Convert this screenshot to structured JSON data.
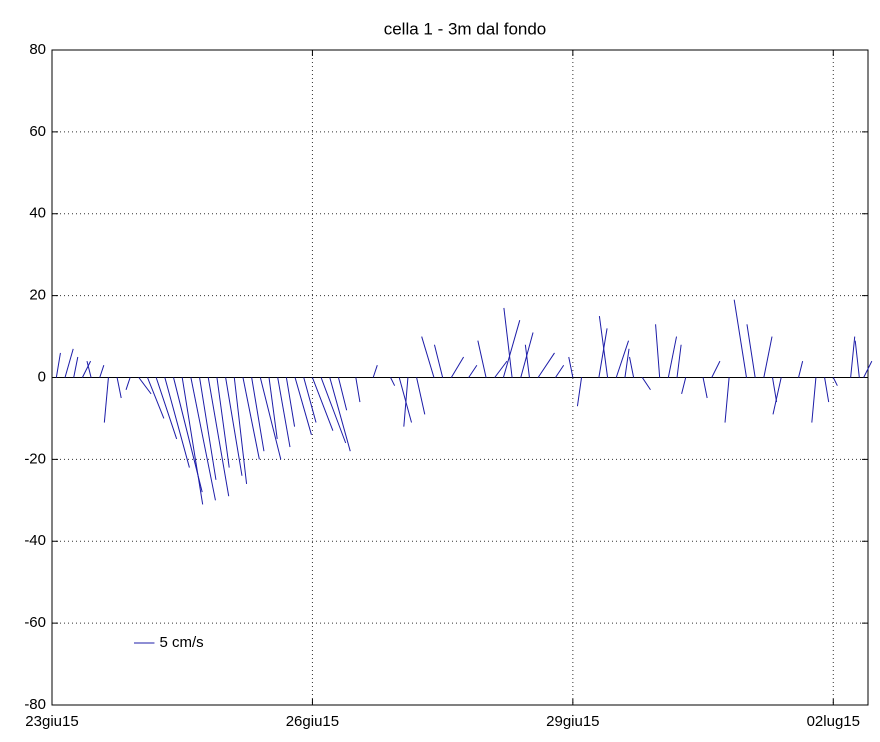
{
  "chart_data": {
    "type": "stick",
    "title": "cella 1 - 3m dal fondo",
    "xlim": [
      0,
      9.4
    ],
    "ylim": [
      -80,
      80
    ],
    "xticks": [
      {
        "value": 0,
        "label": "23giu15"
      },
      {
        "value": 3,
        "label": "26giu15"
      },
      {
        "value": 6,
        "label": "29giu15"
      },
      {
        "value": 9,
        "label": "02lug15"
      }
    ],
    "yticks": [
      -80,
      -60,
      -40,
      -20,
      0,
      20,
      40,
      60,
      80
    ],
    "grid": true,
    "legend": "lower left",
    "series": [
      {
        "name": "5 cm/s",
        "color": "#1c1ca8",
        "legend_length": 5,
        "x": [
          0.05,
          0.15,
          0.25,
          0.35,
          0.45,
          0.55,
          0.65,
          0.75,
          0.9,
          1.0,
          1.1,
          1.2,
          1.3,
          1.4,
          1.5,
          1.6,
          1.7,
          1.8,
          1.9,
          2.0,
          2.1,
          2.2,
          2.3,
          2.4,
          2.5,
          2.6,
          2.7,
          2.8,
          2.9,
          3.0,
          3.1,
          3.2,
          3.3,
          3.5,
          3.7,
          3.9,
          4.0,
          4.1,
          4.2,
          4.4,
          4.5,
          4.6,
          4.8,
          5.0,
          5.1,
          5.2,
          5.3,
          5.4,
          5.5,
          5.6,
          5.8,
          6.0,
          6.1,
          6.3,
          6.4,
          6.5,
          6.6,
          6.7,
          6.8,
          7.0,
          7.1,
          7.2,
          7.3,
          7.5,
          7.6,
          7.8,
          8.0,
          8.1,
          8.2,
          8.3,
          8.4,
          8.6,
          8.8,
          8.9,
          9.0,
          9.2,
          9.3,
          9.35
        ],
        "u": [
          1,
          2,
          1,
          2,
          -1,
          1,
          -1,
          1,
          -1,
          3,
          4,
          5,
          6,
          7,
          5,
          6,
          4,
          5,
          3,
          4,
          3,
          4,
          3,
          5,
          2,
          3,
          2,
          4,
          3,
          5,
          6,
          5,
          2,
          1,
          1,
          1,
          3,
          -1,
          2,
          -3,
          -2,
          3,
          2,
          -2,
          3,
          4,
          -2,
          3,
          -1,
          4,
          2,
          -1,
          -1,
          2,
          -2,
          3,
          1,
          -1,
          2,
          -1,
          2,
          1,
          -1,
          1,
          2,
          -1,
          -3,
          -2,
          2,
          1,
          -2,
          1,
          -1,
          1,
          1,
          1,
          -1,
          2
        ],
        "v": [
          6,
          7,
          5,
          4,
          4,
          3,
          -11,
          -5,
          -3,
          -4,
          -10,
          -15,
          -22,
          -28,
          -31,
          -30,
          -25,
          -29,
          -22,
          -24,
          -26,
          -20,
          -18,
          -20,
          -15,
          -17,
          -12,
          -14,
          -11,
          -13,
          -16,
          -18,
          -8,
          -6,
          3,
          -2,
          -11,
          -12,
          -9,
          10,
          8,
          5,
          3,
          9,
          4,
          14,
          17,
          11,
          8,
          6,
          3,
          5,
          -7,
          12,
          15,
          9,
          7,
          5,
          -3,
          13,
          10,
          8,
          -4,
          -5,
          4,
          -11,
          19,
          13,
          10,
          -6,
          -9,
          4,
          -11,
          -6,
          -2,
          10,
          9,
          4
        ]
      }
    ]
  }
}
